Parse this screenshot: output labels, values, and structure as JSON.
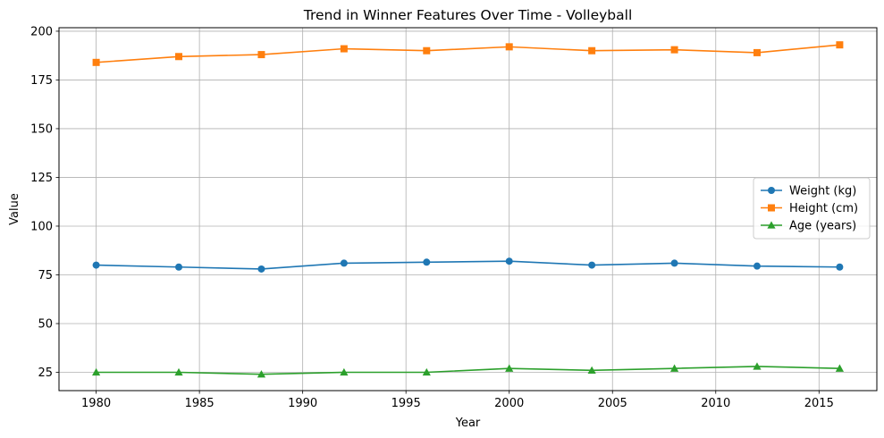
{
  "chart_data": {
    "type": "line",
    "title": "Trend in Winner Features Over Time - Volleyball",
    "xlabel": "Year",
    "ylabel": "Value",
    "x": [
      1980,
      1984,
      1988,
      1992,
      1996,
      2000,
      2004,
      2008,
      2012,
      2016
    ],
    "xlim": [
      1978.2,
      2017.8
    ],
    "ylim": [
      15.6,
      201.8
    ],
    "xticks": [
      1980,
      1985,
      1990,
      1995,
      2000,
      2005,
      2010,
      2015
    ],
    "yticks": [
      25,
      50,
      75,
      100,
      125,
      150,
      175,
      200
    ],
    "grid": true,
    "legend_position": "center-right",
    "series": [
      {
        "name": "Weight (kg)",
        "color": "#1f77b4",
        "marker": "circle",
        "values": [
          80,
          79,
          78,
          81,
          81.5,
          82,
          80,
          81,
          79.5,
          79
        ]
      },
      {
        "name": "Height (cm)",
        "color": "#ff7f0e",
        "marker": "square",
        "values": [
          184,
          187,
          188,
          191,
          190,
          192,
          190,
          190.5,
          189,
          193
        ]
      },
      {
        "name": "Age (years)",
        "color": "#2ca02c",
        "marker": "triangle",
        "values": [
          25,
          25,
          24,
          25,
          25,
          27,
          26,
          27,
          28,
          27
        ]
      }
    ]
  }
}
